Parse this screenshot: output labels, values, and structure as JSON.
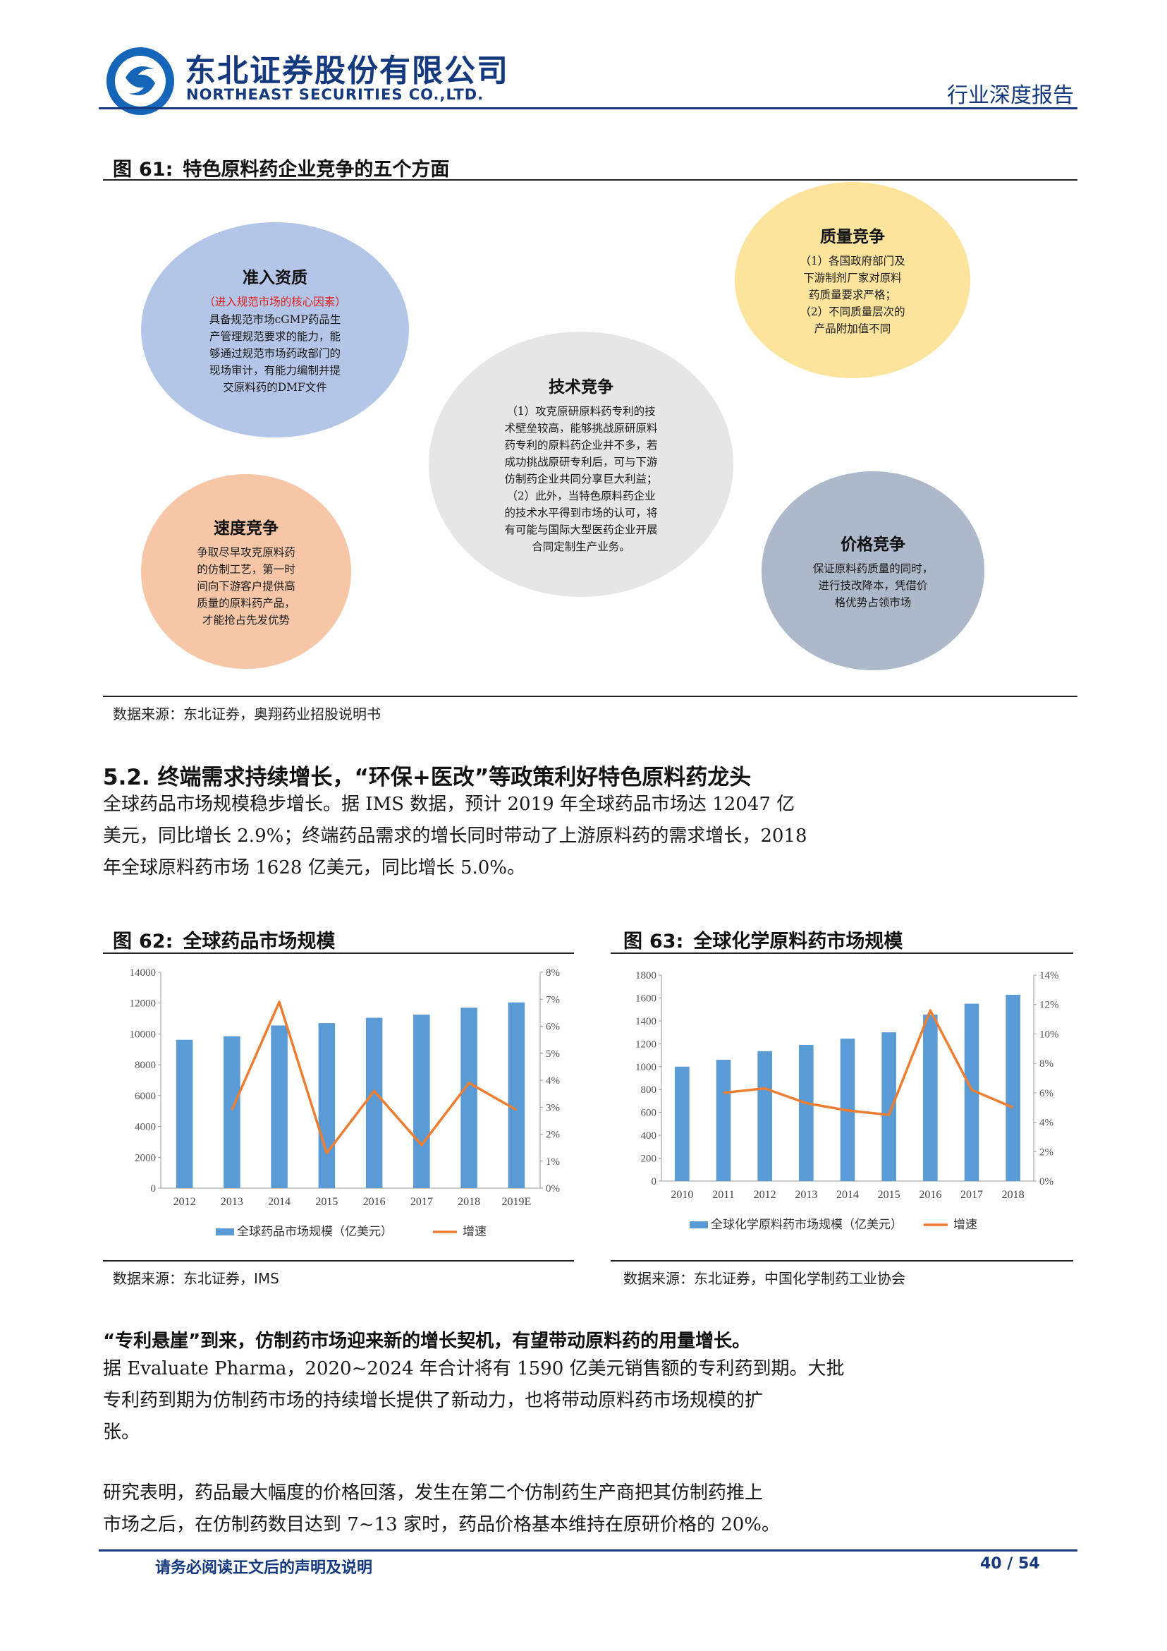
{
  "header": {
    "company_cn": "东北证券股份有限公司",
    "company_en": "NORTHEAST SECURITIES CO.,LTD.",
    "doc_type": "行业深度报告"
  },
  "figure61": {
    "label": "图",
    "number": "61:",
    "title": "特色原料药企业竞争的五个方面",
    "bubbles": [
      {
        "title": "准入资质",
        "subtitle": "（进入规范市场的核心因素）",
        "lines": [
          "具备规范市场cGMP药品生",
          "产管理规范要求的能力，能",
          "够通过规范市场药政部门的",
          "现场审计，有能力编制并提",
          "交原料药的DMF文件"
        ],
        "color": "#b4c6e7"
      },
      {
        "title": "质量竞争",
        "subtitle": "",
        "lines": [
          "（1）各国政府部门及",
          "下游制剂厂家对原料",
          "药质量要求严格；",
          "（2）不同质量层次的",
          "产品附加值不同"
        ],
        "color": "#fde49c"
      },
      {
        "title": "技术竞争",
        "subtitle": "",
        "lines": [
          "（1）攻克原研原料药专利的技",
          "术壁垒较高，能够挑战原研原料",
          "药专利的原料药企业并不多，若",
          "成功挑战原研专利后，可与下游",
          "仿制药企业共同分享巨大利益；",
          "（2）此外，当特色原料药企业",
          "的技术水平得到市场的认可，将",
          "有可能与国际大型医药企业开展",
          "合同定制生产业务。"
        ],
        "color": "#e6e6e6"
      },
      {
        "title": "速度竞争",
        "subtitle": "",
        "lines": [
          "争取尽早攻克原料药",
          "的仿制工艺，第一时",
          "间向下游客户提供高",
          "质量的原料药产品，",
          "才能抢占先发优势"
        ],
        "color": "#f6c6a6"
      },
      {
        "title": "价格竞争",
        "subtitle": "",
        "lines": [
          "保证原料药质量的同时，",
          "进行技改降本，凭借价",
          "格优势占领市场"
        ],
        "color": "#adb9ca"
      }
    ],
    "source": "数据来源：东北证券，奥翔药业招股说明书"
  },
  "section": {
    "heading": "5.2. 终端需求持续增长，“环保+医改”等政策利好特色原料药龙头",
    "para1_lines": [
      "全球药品市场规模稳步增长。据 IMS 数据，预计 2019 年全球药品市场达 12047 亿",
      "美元，同比增长 2.9%；终端药品需求的增长同时带动了上游原料药的需求增长，2018",
      "年全球原料药市场 1628 亿美元，同比增长 5.0%。"
    ]
  },
  "figure62": {
    "label": "图",
    "number": "62:",
    "title": "全球药品市场规模",
    "source": "数据来源：东北证券，IMS"
  },
  "figure63": {
    "label": "图",
    "number": "63:",
    "title": "全球化学原料药市场规模",
    "source": "数据来源：东北证券，中国化学制药工业协会"
  },
  "chart_data": [
    {
      "type": "bar",
      "categories": [
        "2012",
        "2013",
        "2014",
        "2015",
        "2016",
        "2017",
        "2018",
        "2019E"
      ],
      "series": [
        {
          "name": "全球药品市场规模（亿美元）",
          "type": "bar",
          "axis": "left",
          "values": [
            9620,
            9850,
            10550,
            10700,
            11050,
            11250,
            11700,
            12047
          ]
        },
        {
          "name": "增速",
          "type": "line",
          "axis": "right",
          "values": [
            null,
            2.9,
            6.9,
            1.3,
            3.6,
            1.6,
            3.9,
            2.9
          ]
        }
      ],
      "left_ylim": [
        0,
        14000
      ],
      "left_ticks": [
        0,
        2000,
        4000,
        6000,
        8000,
        10000,
        12000,
        14000
      ],
      "right_ylim": [
        0,
        8
      ],
      "right_ticks": [
        "0%",
        "1%",
        "2%",
        "3%",
        "4%",
        "5%",
        "6%",
        "7%",
        "8%"
      ],
      "bar_color": "#5b9bd5",
      "line_color": "#ed7d31"
    },
    {
      "type": "bar",
      "categories": [
        "2010",
        "2011",
        "2012",
        "2013",
        "2014",
        "2015",
        "2016",
        "2017",
        "2018"
      ],
      "series": [
        {
          "name": "全球化学原料药市场规模（亿美元）",
          "type": "bar",
          "axis": "left",
          "values": [
            1000,
            1060,
            1135,
            1190,
            1245,
            1300,
            1455,
            1550,
            1628
          ]
        },
        {
          "name": "增速",
          "type": "line",
          "axis": "right",
          "values": [
            null,
            6.0,
            6.3,
            5.3,
            4.8,
            4.5,
            11.6,
            6.2,
            5.0
          ]
        }
      ],
      "left_ylim": [
        0,
        1800
      ],
      "left_ticks": [
        0,
        200,
        400,
        600,
        800,
        1000,
        1200,
        1400,
        1600,
        1800
      ],
      "right_ylim": [
        0,
        14
      ],
      "right_ticks": [
        "0%",
        "2%",
        "4%",
        "6%",
        "8%",
        "10%",
        "12%",
        "14%"
      ],
      "bar_color": "#5b9bd5",
      "line_color": "#ed7d31"
    }
  ],
  "patent": {
    "lead": "“专利悬崖”到来，仿制药市场迎来新的增长契机，有望带动原料药的用量增长。",
    "lines": [
      "据 Evaluate Pharma，2020~2024 年合计将有 1590 亿美元销售额的专利药到期。大批",
      "专利药到期为仿制药市场的持续增长提供了新动力，也将带动原料药市场规模的扩",
      "张。"
    ]
  },
  "research": {
    "lines": [
      "研究表明，药品最大幅度的价格回落，发生在第二个仿制药生产商把其仿制药推上",
      "市场之后，在仿制药数目达到 7~13 家时，药品价格基本维持在原研价格的 20%。"
    ]
  },
  "footer": {
    "notice": "请务必阅读正文后的声明及说明",
    "page": "40 / 54"
  }
}
